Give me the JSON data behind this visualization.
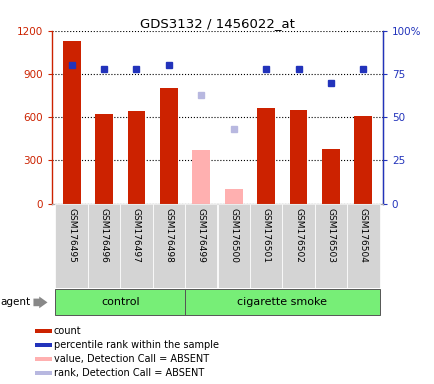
{
  "title": "GDS3132 / 1456022_at",
  "samples": [
    "GSM176495",
    "GSM176496",
    "GSM176497",
    "GSM176498",
    "GSM176499",
    "GSM176500",
    "GSM176501",
    "GSM176502",
    "GSM176503",
    "GSM176504"
  ],
  "counts": [
    1130,
    620,
    640,
    800,
    370,
    100,
    660,
    650,
    380,
    610
  ],
  "absent_mask": [
    false,
    false,
    false,
    false,
    true,
    true,
    false,
    false,
    false,
    false
  ],
  "percentile_ranks": [
    80,
    78,
    78,
    80,
    63,
    43,
    78,
    78,
    70,
    78
  ],
  "ylim_left": [
    0,
    1200
  ],
  "ylim_right": [
    0,
    100
  ],
  "yticks_left": [
    0,
    300,
    600,
    900,
    1200
  ],
  "yticks_right": [
    0,
    25,
    50,
    75,
    100
  ],
  "yticklabels_right": [
    "0",
    "25",
    "50",
    "75",
    "100%"
  ],
  "bar_color_present": "#cc2200",
  "bar_color_absent": "#ffb0b0",
  "dot_color_present": "#2233bb",
  "dot_color_absent": "#b8b8e0",
  "control_label": "control",
  "smoke_label": "cigarette smoke",
  "agent_label": "agent",
  "group_bar_color": "#77ee77",
  "left_axis_color": "#cc2200",
  "right_axis_color": "#2233bb",
  "legend_items": [
    {
      "color": "#cc2200",
      "label": "count"
    },
    {
      "color": "#2233bb",
      "label": "percentile rank within the sample"
    },
    {
      "color": "#ffb0b0",
      "label": "value, Detection Call = ABSENT"
    },
    {
      "color": "#b8b8e0",
      "label": "rank, Detection Call = ABSENT"
    }
  ],
  "n_control": 4,
  "n_total": 10
}
